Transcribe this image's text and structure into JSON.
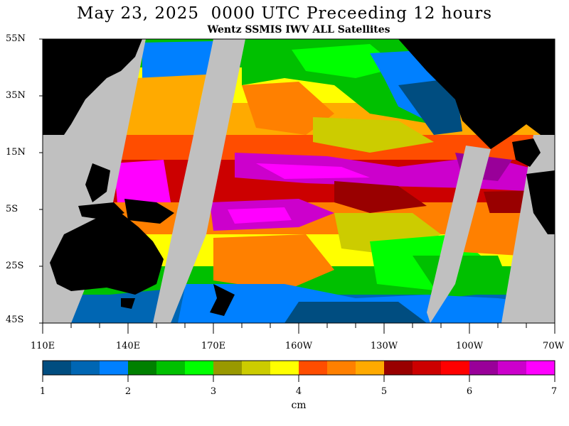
{
  "title": "May 23, 2025  0000 UTC Preceeding 12 hours",
  "subtitle": "Wentz SSMIS IWV ALL Satellites",
  "lat_labels": [
    "55N",
    "35N",
    "15N",
    "5S",
    "25S",
    "45S"
  ],
  "lon_labels": [
    "110E",
    "140E",
    "170E",
    "160W",
    "130W",
    "100W",
    "70W"
  ],
  "colorbar": {
    "ticks": [
      "1",
      "2",
      "3",
      "4",
      "5",
      "6",
      "7"
    ],
    "unit": "cm",
    "colors": [
      "#004d80",
      "#0066b3",
      "#0080ff",
      "#008000",
      "#00c000",
      "#00ff00",
      "#999900",
      "#cccc00",
      "#ffff00",
      "#ff4d00",
      "#ff8000",
      "#ffaa00",
      "#990000",
      "#cc0000",
      "#ff0000",
      "#990099",
      "#cc00cc",
      "#ff00ff"
    ]
  },
  "colors": {
    "land": "#000000",
    "no_data": "#c0c0c0",
    "frame": "#000000"
  }
}
